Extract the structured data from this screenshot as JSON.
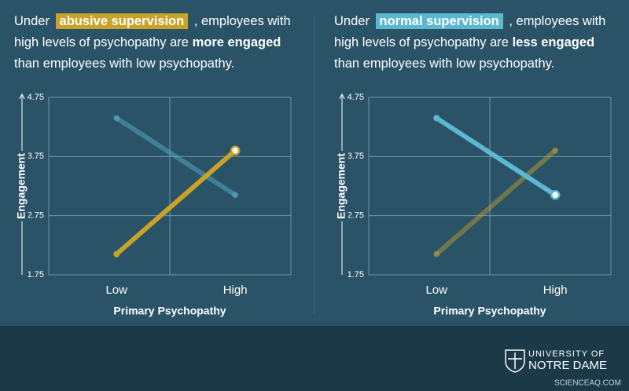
{
  "chart_data": [
    {
      "type": "line",
      "title_parts": [
        "Under",
        "abusive supervision",
        ", employees with high levels of psychopathy are",
        "more engaged",
        "than employees with low psychopathy."
      ],
      "highlight_color": "#c9a227",
      "categories": [
        "Low",
        "High"
      ],
      "series": [
        {
          "color": "#5bb8d0",
          "values": [
            4.4,
            3.1
          ],
          "opacity": 0.45,
          "end_marker": false
        },
        {
          "color": "#c9a227",
          "values": [
            2.1,
            3.85
          ],
          "opacity": 1,
          "end_marker": true
        }
      ],
      "ylim": [
        1.75,
        4.75
      ],
      "yticks": [
        1.75,
        2.75,
        3.75,
        4.75
      ],
      "grid": true,
      "ylabel": "Engagement",
      "xlabel": "Primary Psychopathy"
    },
    {
      "type": "line",
      "title_parts": [
        "Under",
        "normal supervision",
        ", employees with high levels of psychopathy are",
        "less engaged",
        "than employees with low psychopathy."
      ],
      "highlight_color": "#5bb8d0",
      "categories": [
        "Low",
        "High"
      ],
      "series": [
        {
          "color": "#c9a227",
          "values": [
            2.1,
            3.85
          ],
          "opacity": 0.45,
          "end_marker": false
        },
        {
          "color": "#5bb8d0",
          "values": [
            4.4,
            3.1
          ],
          "opacity": 1,
          "end_marker": true
        }
      ],
      "ylim": [
        1.75,
        4.75
      ],
      "yticks": [
        1.75,
        2.75,
        3.75,
        4.75
      ],
      "grid": true,
      "ylabel": "Engagement",
      "xlabel": "Primary Psychopathy"
    }
  ],
  "footer": {
    "logo_top": "UNIVERSITY OF",
    "logo_bottom": "NOTRE DAME",
    "source": "SCIENCEAQ.COM"
  }
}
